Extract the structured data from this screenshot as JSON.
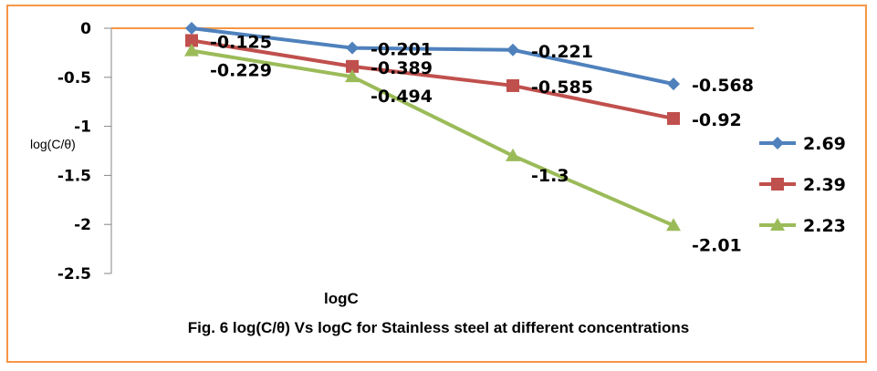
{
  "chart_data": {
    "type": "line",
    "title": "Fig. 6 log(C/θ) Vs  logC for  Stainless steel at different concentrations",
    "xlabel": "logC",
    "ylabel": "log(C/θ)",
    "ylim": [
      -2.5,
      0
    ],
    "yticks": [
      "0",
      "-0.5",
      "-1",
      "-1.5",
      "-2",
      "-2.5"
    ],
    "grid": true,
    "legend_position": "right",
    "series": [
      {
        "name": "2.69",
        "color": "#4f81bd",
        "marker": "diamond",
        "values": [
          0,
          -0.201,
          -0.221,
          -0.568
        ],
        "labels": [
          "",
          "-0.201",
          "-0.221",
          "-0.568"
        ]
      },
      {
        "name": "2.39",
        "color": "#c0504d",
        "marker": "square",
        "values": [
          -0.125,
          -0.389,
          -0.585,
          -0.92
        ],
        "labels": [
          "-0.125",
          "-0.389",
          "-0.585",
          "-0.92"
        ]
      },
      {
        "name": "2.23",
        "color": "#9bbb59",
        "marker": "triangle",
        "values": [
          -0.229,
          -0.494,
          -1.3,
          -2.01
        ],
        "labels": [
          "-0.229",
          "-0.494",
          "-1.3",
          "-2.01"
        ]
      }
    ]
  }
}
